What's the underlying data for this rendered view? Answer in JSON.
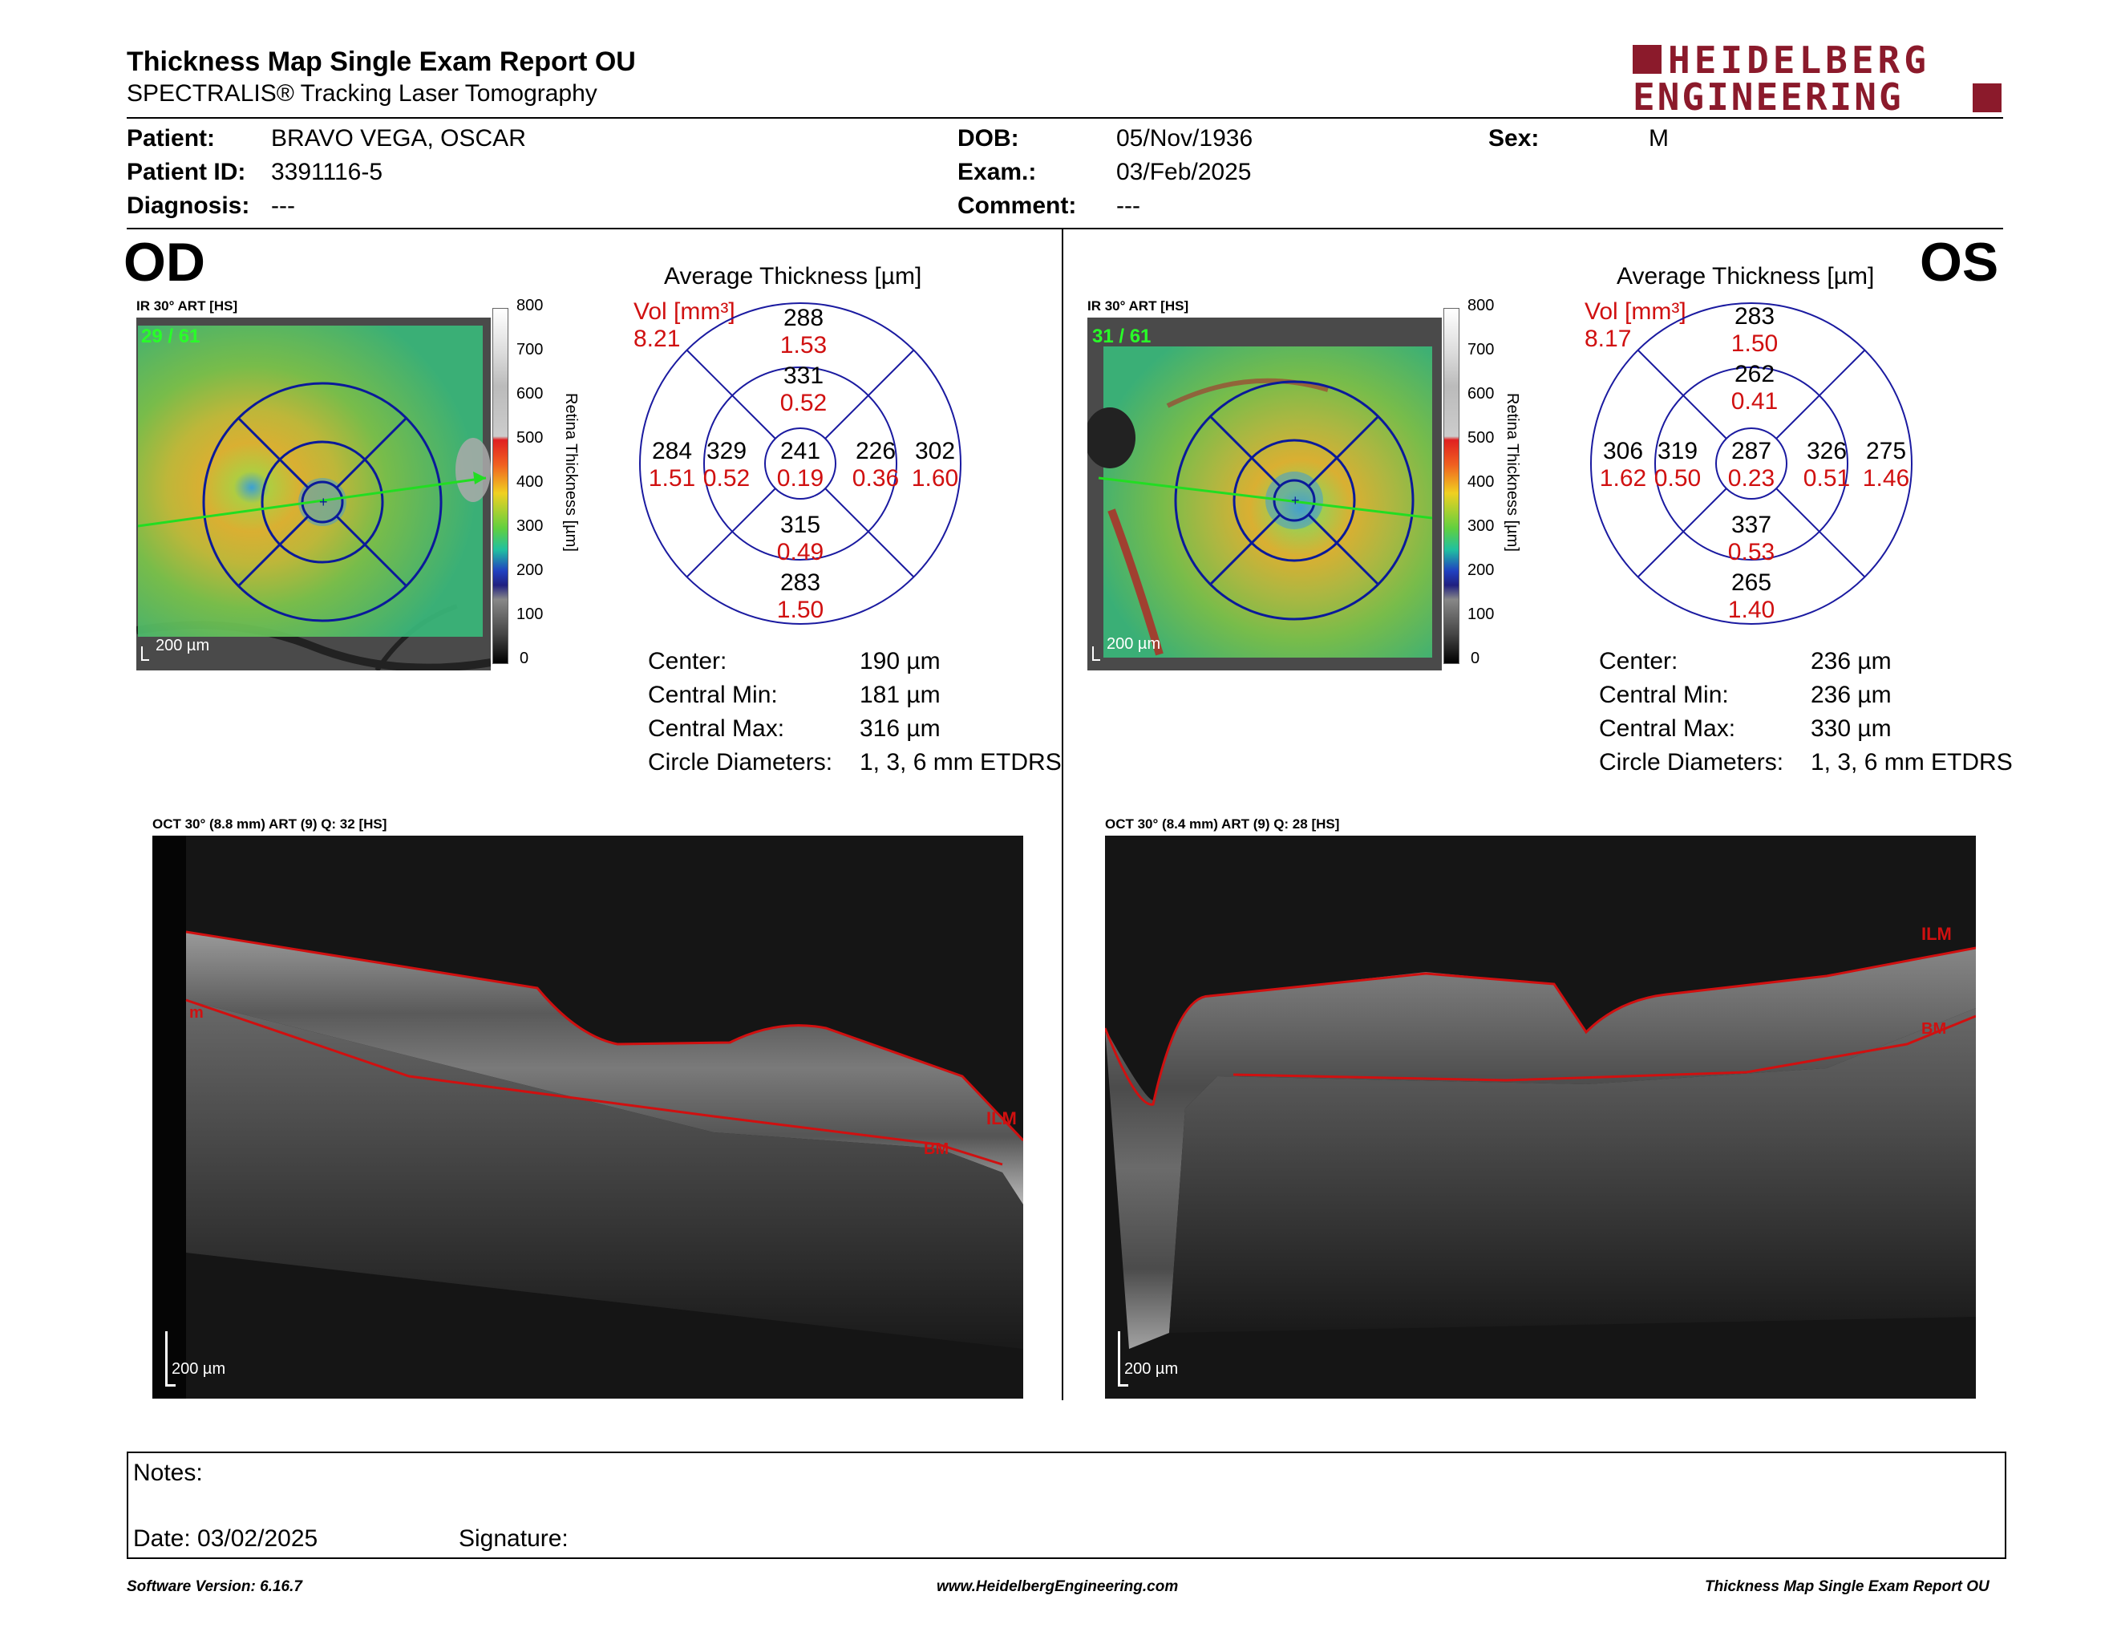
{
  "header": {
    "title": "Thickness Map Single Exam Report OU",
    "subtitle": "SPECTRALIS® Tracking Laser Tomography",
    "logo_line1": "HEIDELBERG",
    "logo_line2": "ENGINEERING",
    "colors": {
      "brand": "#8b1a2b"
    }
  },
  "patient": {
    "patient_label": "Patient:",
    "patient": "BRAVO VEGA, OSCAR",
    "id_label": "Patient ID:",
    "id": "3391116-5",
    "diagnosis_label": "Diagnosis:",
    "diagnosis": "---",
    "dob_label": "DOB:",
    "dob": "05/Nov/1936",
    "exam_label": "Exam.:",
    "exam": "03/Feb/2025",
    "comment_label": "Comment:",
    "comment": "---",
    "sex_label": "Sex:",
    "sex": "M"
  },
  "colorbar": {
    "ticks": [
      "800",
      "700",
      "600",
      "500",
      "400",
      "300",
      "200",
      "100",
      "0"
    ],
    "label": "Retina Thickness [µm]"
  },
  "od": {
    "eye": "OD",
    "ir_label": "IR 30° ART [HS]",
    "frame": "29 / 61",
    "scale": "200 µm",
    "avg_title": "Average Thickness [µm]",
    "vol_label": "Vol [mm³]",
    "vol_total": "8.21",
    "etdrs": {
      "outer_top": [
        "288",
        "1.53"
      ],
      "inner_top": [
        "331",
        "0.52"
      ],
      "outer_left": [
        "284",
        "1.51"
      ],
      "inner_left": [
        "329",
        "0.52"
      ],
      "center": [
        "241",
        "0.19"
      ],
      "inner_right": [
        "226",
        "0.36"
      ],
      "outer_right": [
        "302",
        "1.60"
      ],
      "inner_bottom": [
        "315",
        "0.49"
      ],
      "outer_bottom": [
        "283",
        "1.50"
      ]
    },
    "stats": [
      {
        "label": "Center:",
        "value": "190 µm"
      },
      {
        "label": "Central Min:",
        "value": "181 µm"
      },
      {
        "label": "Central Max:",
        "value": "316 µm"
      },
      {
        "label": "Circle Diameters:",
        "value": "1, 3, 6 mm ETDRS"
      }
    ],
    "oct_label": "OCT 30° (8.8 mm) ART (9) Q: 32 [HS]",
    "oct_scale": "200 µm",
    "ilm": "ILM",
    "bm": "BM",
    "ilm_edge": "m"
  },
  "os": {
    "eye": "OS",
    "ir_label": "IR 30° ART [HS]",
    "frame": "31 / 61",
    "scale": "200 µm",
    "avg_title": "Average Thickness [µm]",
    "vol_label": "Vol [mm³]",
    "vol_total": "8.17",
    "etdrs": {
      "outer_top": [
        "283",
        "1.50"
      ],
      "inner_top": [
        "262",
        "0.41"
      ],
      "outer_left": [
        "306",
        "1.62"
      ],
      "inner_left": [
        "319",
        "0.50"
      ],
      "center": [
        "287",
        "0.23"
      ],
      "inner_right": [
        "326",
        "0.51"
      ],
      "outer_right": [
        "275",
        "1.46"
      ],
      "inner_bottom": [
        "337",
        "0.53"
      ],
      "outer_bottom": [
        "265",
        "1.40"
      ]
    },
    "stats": [
      {
        "label": "Center:",
        "value": "236 µm"
      },
      {
        "label": "Central Min:",
        "value": "236 µm"
      },
      {
        "label": "Central Max:",
        "value": "330 µm"
      },
      {
        "label": "Circle Diameters:",
        "value": "1, 3, 6 mm ETDRS"
      }
    ],
    "oct_label": "OCT 30° (8.4 mm) ART (9) Q: 28 [HS]",
    "oct_scale": "200 µm",
    "ilm": "ILM",
    "bm": "BM"
  },
  "notes": {
    "notes_label": "Notes:",
    "date_label": "Date: 03/02/2025",
    "signature_label": "Signature:"
  },
  "footer": {
    "software": "Software Version: 6.16.7",
    "website": "www.HeidelbergEngineering.com",
    "report": "Thickness Map Single Exam Report OU"
  }
}
